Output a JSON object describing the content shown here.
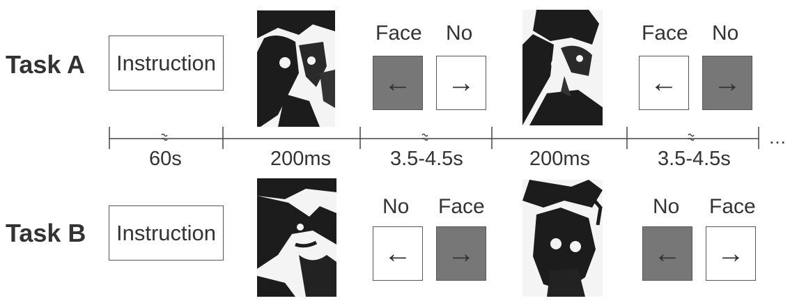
{
  "tasks": [
    {
      "label": "Task A",
      "instruction": "Instruction",
      "trials": [
        {
          "left_label": "Face",
          "right_label": "No",
          "left_arrow": "←",
          "right_arrow": "→",
          "selected": "left"
        },
        {
          "left_label": "Face",
          "right_label": "No",
          "left_arrow": "←",
          "right_arrow": "→",
          "selected": "right"
        }
      ]
    },
    {
      "label": "Task B",
      "instruction": "Instruction",
      "trials": [
        {
          "left_label": "No",
          "right_label": "Face",
          "left_arrow": "←",
          "right_arrow": "→",
          "selected": "right"
        },
        {
          "left_label": "No",
          "right_label": "Face",
          "left_arrow": "←",
          "right_arrow": "→",
          "selected": "left"
        }
      ]
    }
  ],
  "timeline": {
    "durations": [
      "60s",
      "200ms",
      "3.5-4.5s",
      "200ms",
      "3.5-4.5s"
    ],
    "ellipsis": "…",
    "colors": {
      "line": "#444444",
      "shaded_key": "#777777"
    }
  },
  "stimuli": [
    "mooney-face-icon",
    "mooney-face-icon",
    "mooney-face-icon",
    "mooney-face-icon"
  ]
}
